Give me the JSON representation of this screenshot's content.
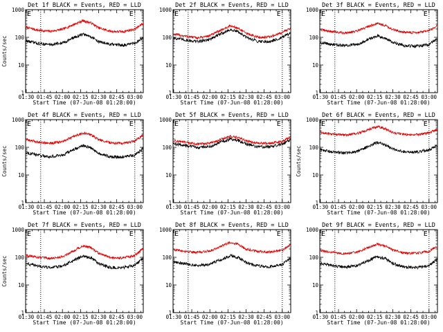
{
  "figure": {
    "background": "#ffffff"
  },
  "chart_data": [
    {
      "type": "line",
      "title": "Det 1f BLACK = Events, RED = LLD",
      "xlabel": "Start Time (07-Jun-08 01:28:00)",
      "ylabel": "Counts/sec",
      "yscale": "log",
      "ylim": [
        1,
        1000
      ],
      "ytick_labels": [
        "1",
        "10",
        "100",
        "1000"
      ],
      "xlim": [
        89.5,
        187
      ],
      "x_tick_labels": [
        "01:30",
        "01:45",
        "02:00",
        "02:15",
        "02:30",
        "02:45",
        "03:00"
      ],
      "x_tick_minutes": [
        90,
        105,
        120,
        135,
        150,
        165,
        180
      ],
      "vlines_minutes": [
        102,
        180
      ],
      "markers": [
        "E",
        "E"
      ],
      "colors": {
        "red": "#e00000",
        "black": "#000000"
      },
      "series": [
        {
          "name": "RED = LLD",
          "color": "#e00000",
          "x": [
            90,
            100,
            110,
            120,
            130,
            137,
            144,
            150,
            160,
            170,
            180,
            187
          ],
          "y": [
            230,
            180,
            165,
            195,
            300,
            400,
            330,
            220,
            165,
            160,
            200,
            320
          ]
        },
        {
          "name": "BLACK = Events",
          "color": "#000000",
          "x": [
            90,
            100,
            110,
            120,
            130,
            137,
            144,
            150,
            160,
            170,
            180,
            187
          ],
          "y": [
            75,
            60,
            55,
            62,
            100,
            130,
            105,
            70,
            55,
            52,
            60,
            100
          ]
        }
      ]
    },
    {
      "type": "line",
      "title": "Det 2f BLACK = Events, RED = LLD",
      "xlabel": "Start Time (07-Jun-08 01:28:00)",
      "ylabel": "",
      "yscale": "log",
      "ylim": [
        1,
        1000
      ],
      "ytick_labels": [
        "1",
        "10",
        "100",
        "1000"
      ],
      "xlim": [
        89.5,
        187
      ],
      "x_tick_labels": [
        "01:30",
        "01:45",
        "02:00",
        "02:15",
        "02:30",
        "02:45",
        "03:00"
      ],
      "x_tick_minutes": [
        90,
        105,
        120,
        135,
        150,
        165,
        180
      ],
      "vlines_minutes": [
        102,
        180
      ],
      "markers": [
        "E",
        "E"
      ],
      "colors": {
        "red": "#e00000",
        "black": "#000000"
      },
      "series": [
        {
          "name": "RED = LLD",
          "color": "#e00000",
          "x": [
            90,
            100,
            110,
            120,
            130,
            137,
            144,
            150,
            160,
            170,
            180,
            187
          ],
          "y": [
            130,
            110,
            95,
            115,
            190,
            260,
            210,
            140,
            100,
            105,
            150,
            220
          ]
        },
        {
          "name": "BLACK = Events",
          "color": "#000000",
          "x": [
            90,
            100,
            110,
            120,
            130,
            137,
            144,
            150,
            160,
            170,
            180,
            187
          ],
          "y": [
            95,
            80,
            70,
            85,
            140,
            190,
            155,
            100,
            72,
            70,
            100,
            140
          ]
        }
      ]
    },
    {
      "type": "line",
      "title": "Det 3f BLACK = Events, RED = LLD",
      "xlabel": "Start Time (07-Jun-08 01:28:00)",
      "ylabel": "",
      "yscale": "log",
      "ylim": [
        1,
        1000
      ],
      "ytick_labels": [
        "1",
        "10",
        "100",
        "1000"
      ],
      "xlim": [
        89.5,
        187
      ],
      "x_tick_labels": [
        "01:30",
        "01:45",
        "02:00",
        "02:15",
        "02:30",
        "02:45",
        "03:00"
      ],
      "x_tick_minutes": [
        90,
        105,
        120,
        135,
        150,
        165,
        180
      ],
      "vlines_minutes": [
        102,
        180
      ],
      "markers": [
        "E",
        "E"
      ],
      "colors": {
        "red": "#e00000",
        "black": "#000000"
      },
      "series": [
        {
          "name": "RED = LLD",
          "color": "#e00000",
          "x": [
            90,
            100,
            110,
            120,
            130,
            137,
            144,
            150,
            160,
            170,
            180,
            187
          ],
          "y": [
            190,
            160,
            145,
            165,
            250,
            320,
            270,
            190,
            150,
            150,
            170,
            260
          ]
        },
        {
          "name": "BLACK = Events",
          "color": "#000000",
          "x": [
            90,
            100,
            110,
            120,
            130,
            137,
            144,
            150,
            160,
            170,
            180,
            187
          ],
          "y": [
            65,
            55,
            50,
            55,
            85,
            115,
            95,
            65,
            50,
            48,
            55,
            90
          ]
        }
      ]
    },
    {
      "type": "line",
      "title": "Det 4f BLACK = Events, RED = LLD",
      "xlabel": "Start Time (07-Jun-08 01:28:00)",
      "ylabel": "Counts/sec",
      "yscale": "log",
      "ylim": [
        1,
        1000
      ],
      "ytick_labels": [
        "1",
        "10",
        "100",
        "1000"
      ],
      "xlim": [
        89.5,
        187
      ],
      "x_tick_labels": [
        "01:30",
        "01:45",
        "02:00",
        "02:15",
        "02:30",
        "02:45",
        "03:00"
      ],
      "x_tick_minutes": [
        90,
        105,
        120,
        135,
        150,
        165,
        180
      ],
      "vlines_minutes": [
        102,
        180
      ],
      "markers": [
        "E",
        "E"
      ],
      "colors": {
        "red": "#e00000",
        "black": "#000000"
      },
      "series": [
        {
          "name": "RED = LLD",
          "color": "#e00000",
          "x": [
            90,
            100,
            110,
            120,
            130,
            137,
            144,
            150,
            160,
            170,
            180,
            187
          ],
          "y": [
            190,
            155,
            140,
            160,
            250,
            330,
            280,
            190,
            145,
            140,
            170,
            280
          ]
        },
        {
          "name": "BLACK = Events",
          "color": "#000000",
          "x": [
            90,
            100,
            110,
            120,
            130,
            137,
            144,
            150,
            160,
            170,
            180,
            187
          ],
          "y": [
            65,
            52,
            45,
            52,
            85,
            115,
            95,
            62,
            45,
            44,
            52,
            90
          ]
        }
      ]
    },
    {
      "type": "line",
      "title": "Det 5f BLACK = Events, RED = LLD",
      "xlabel": "Start Time (07-Jun-08 01:28:00)",
      "ylabel": "",
      "yscale": "log",
      "ylim": [
        1,
        1000
      ],
      "ytick_labels": [
        "1",
        "10",
        "100",
        "1000"
      ],
      "xlim": [
        89.5,
        187
      ],
      "x_tick_labels": [
        "01:30",
        "01:45",
        "02:00",
        "02:15",
        "02:30",
        "02:45",
        "03:00"
      ],
      "x_tick_minutes": [
        90,
        105,
        120,
        135,
        150,
        165,
        180
      ],
      "vlines_minutes": [
        102,
        180
      ],
      "markers": [
        "E",
        "E"
      ],
      "colors": {
        "red": "#e00000",
        "black": "#000000"
      },
      "series": [
        {
          "name": "RED = LLD",
          "color": "#e00000",
          "x": [
            90,
            100,
            110,
            120,
            130,
            137,
            144,
            150,
            160,
            170,
            180,
            187
          ],
          "y": [
            175,
            150,
            130,
            140,
            200,
            250,
            220,
            170,
            140,
            140,
            165,
            240
          ]
        },
        {
          "name": "BLACK = Events",
          "color": "#000000",
          "x": [
            90,
            100,
            110,
            120,
            130,
            137,
            144,
            150,
            160,
            170,
            180,
            187
          ],
          "y": [
            135,
            115,
            100,
            108,
            160,
            200,
            175,
            130,
            105,
            105,
            130,
            190
          ]
        }
      ]
    },
    {
      "type": "line",
      "title": "Det 6f BLACK = Events, RED = LLD",
      "xlabel": "Start Time (07-Jun-08 01:28:00)",
      "ylabel": "Counts/sec",
      "yscale": "log",
      "ylim": [
        1,
        1000
      ],
      "ytick_labels": [
        "1",
        "10",
        "100",
        "1000"
      ],
      "xlim": [
        89.5,
        187
      ],
      "x_tick_labels": [
        "01:30",
        "01:45",
        "02:00",
        "02:15",
        "02:30",
        "02:45",
        "03:00"
      ],
      "x_tick_minutes": [
        90,
        105,
        120,
        135,
        150,
        165,
        180
      ],
      "vlines_minutes": [
        102,
        180
      ],
      "markers": [
        "E",
        "E"
      ],
      "colors": {
        "red": "#e00000",
        "black": "#000000"
      },
      "series": [
        {
          "name": "RED = LLD",
          "color": "#e00000",
          "x": [
            90,
            100,
            110,
            120,
            130,
            137,
            144,
            150,
            160,
            170,
            180,
            187
          ],
          "y": [
            340,
            300,
            280,
            310,
            440,
            560,
            470,
            340,
            290,
            290,
            330,
            450
          ]
        },
        {
          "name": "BLACK = Events",
          "color": "#000000",
          "x": [
            90,
            100,
            110,
            120,
            130,
            137,
            144,
            150,
            160,
            170,
            180,
            187
          ],
          "y": [
            80,
            68,
            62,
            70,
            110,
            150,
            125,
            85,
            68,
            68,
            80,
            120
          ]
        }
      ]
    },
    {
      "type": "line",
      "title": "Det 7f BLACK = Events, RED = LLD",
      "xlabel": "Start Time (07-Jun-08 01:28:00)",
      "ylabel": "Counts/sec",
      "yscale": "log",
      "ylim": [
        1,
        1000
      ],
      "ytick_labels": [
        "1",
        "10",
        "100",
        "1000"
      ],
      "xlim": [
        89.5,
        187
      ],
      "x_tick_labels": [
        "01:30",
        "01:45",
        "02:00",
        "02:15",
        "02:30",
        "02:45",
        "03:00"
      ],
      "x_tick_minutes": [
        90,
        105,
        120,
        135,
        150,
        165,
        180
      ],
      "vlines_minutes": [
        102,
        180
      ],
      "markers": [
        "E",
        "E"
      ],
      "colors": {
        "red": "#e00000",
        "black": "#000000"
      },
      "series": [
        {
          "name": "RED = LLD",
          "color": "#e00000",
          "x": [
            90,
            100,
            110,
            120,
            130,
            137,
            144,
            150,
            160,
            170,
            180,
            187
          ],
          "y": [
            120,
            100,
            90,
            105,
            180,
            260,
            220,
            140,
            95,
            95,
            115,
            210
          ]
        },
        {
          "name": "BLACK = Events",
          "color": "#000000",
          "x": [
            90,
            100,
            110,
            120,
            130,
            137,
            144,
            150,
            160,
            170,
            180,
            187
          ],
          "y": [
            60,
            48,
            42,
            48,
            80,
            110,
            95,
            60,
            42,
            42,
            52,
            95
          ]
        }
      ]
    },
    {
      "type": "line",
      "title": "Det 8f BLACK = Events, RED = LLD",
      "xlabel": "Start Time (07-Jun-08 01:28:00)",
      "ylabel": "",
      "yscale": "log",
      "ylim": [
        1,
        1000
      ],
      "ytick_labels": [
        "1",
        "10",
        "100",
        "1000"
      ],
      "xlim": [
        89.5,
        187
      ],
      "x_tick_labels": [
        "01:30",
        "01:45",
        "02:00",
        "02:15",
        "02:30",
        "02:45",
        "03:00"
      ],
      "x_tick_minutes": [
        90,
        105,
        120,
        135,
        150,
        165,
        180
      ],
      "vlines_minutes": [
        102,
        180
      ],
      "markers": [
        "E",
        "E"
      ],
      "colors": {
        "red": "#e00000",
        "black": "#000000"
      },
      "series": [
        {
          "name": "RED = LLD",
          "color": "#e00000",
          "x": [
            90,
            100,
            110,
            120,
            130,
            137,
            144,
            150,
            160,
            170,
            180,
            187
          ],
          "y": [
            190,
            165,
            150,
            170,
            260,
            350,
            290,
            200,
            160,
            155,
            180,
            280
          ]
        },
        {
          "name": "BLACK = Events",
          "color": "#000000",
          "x": [
            90,
            100,
            110,
            120,
            130,
            137,
            144,
            150,
            160,
            170,
            180,
            187
          ],
          "y": [
            70,
            58,
            50,
            56,
            85,
            115,
            95,
            65,
            48,
            46,
            55,
            95
          ]
        }
      ]
    },
    {
      "type": "line",
      "title": "Det 9f BLACK = Events, RED = LLD",
      "xlabel": "Start Time (07-Jun-08 01:28:00)",
      "ylabel": "",
      "yscale": "log",
      "ylim": [
        1,
        1000
      ],
      "ytick_labels": [
        "1",
        "10",
        "100",
        "1000"
      ],
      "xlim": [
        89.5,
        187
      ],
      "x_tick_labels": [
        "01:30",
        "01:45",
        "02:00",
        "02:15",
        "02:30",
        "02:45",
        "03:00"
      ],
      "x_tick_minutes": [
        90,
        105,
        120,
        135,
        150,
        165,
        180
      ],
      "vlines_minutes": [
        102,
        180
      ],
      "markers": [
        "E",
        "E"
      ],
      "colors": {
        "red": "#e00000",
        "black": "#000000"
      },
      "series": [
        {
          "name": "RED = LLD",
          "color": "#e00000",
          "x": [
            90,
            100,
            110,
            120,
            130,
            137,
            144,
            150,
            160,
            170,
            180,
            187
          ],
          "y": [
            175,
            150,
            135,
            150,
            230,
            300,
            255,
            180,
            140,
            140,
            165,
            250
          ]
        },
        {
          "name": "BLACK = Events",
          "color": "#000000",
          "x": [
            90,
            100,
            110,
            120,
            130,
            137,
            144,
            150,
            160,
            170,
            180,
            187
          ],
          "y": [
            60,
            50,
            44,
            50,
            78,
            105,
            90,
            60,
            44,
            42,
            50,
            85
          ]
        }
      ]
    }
  ]
}
